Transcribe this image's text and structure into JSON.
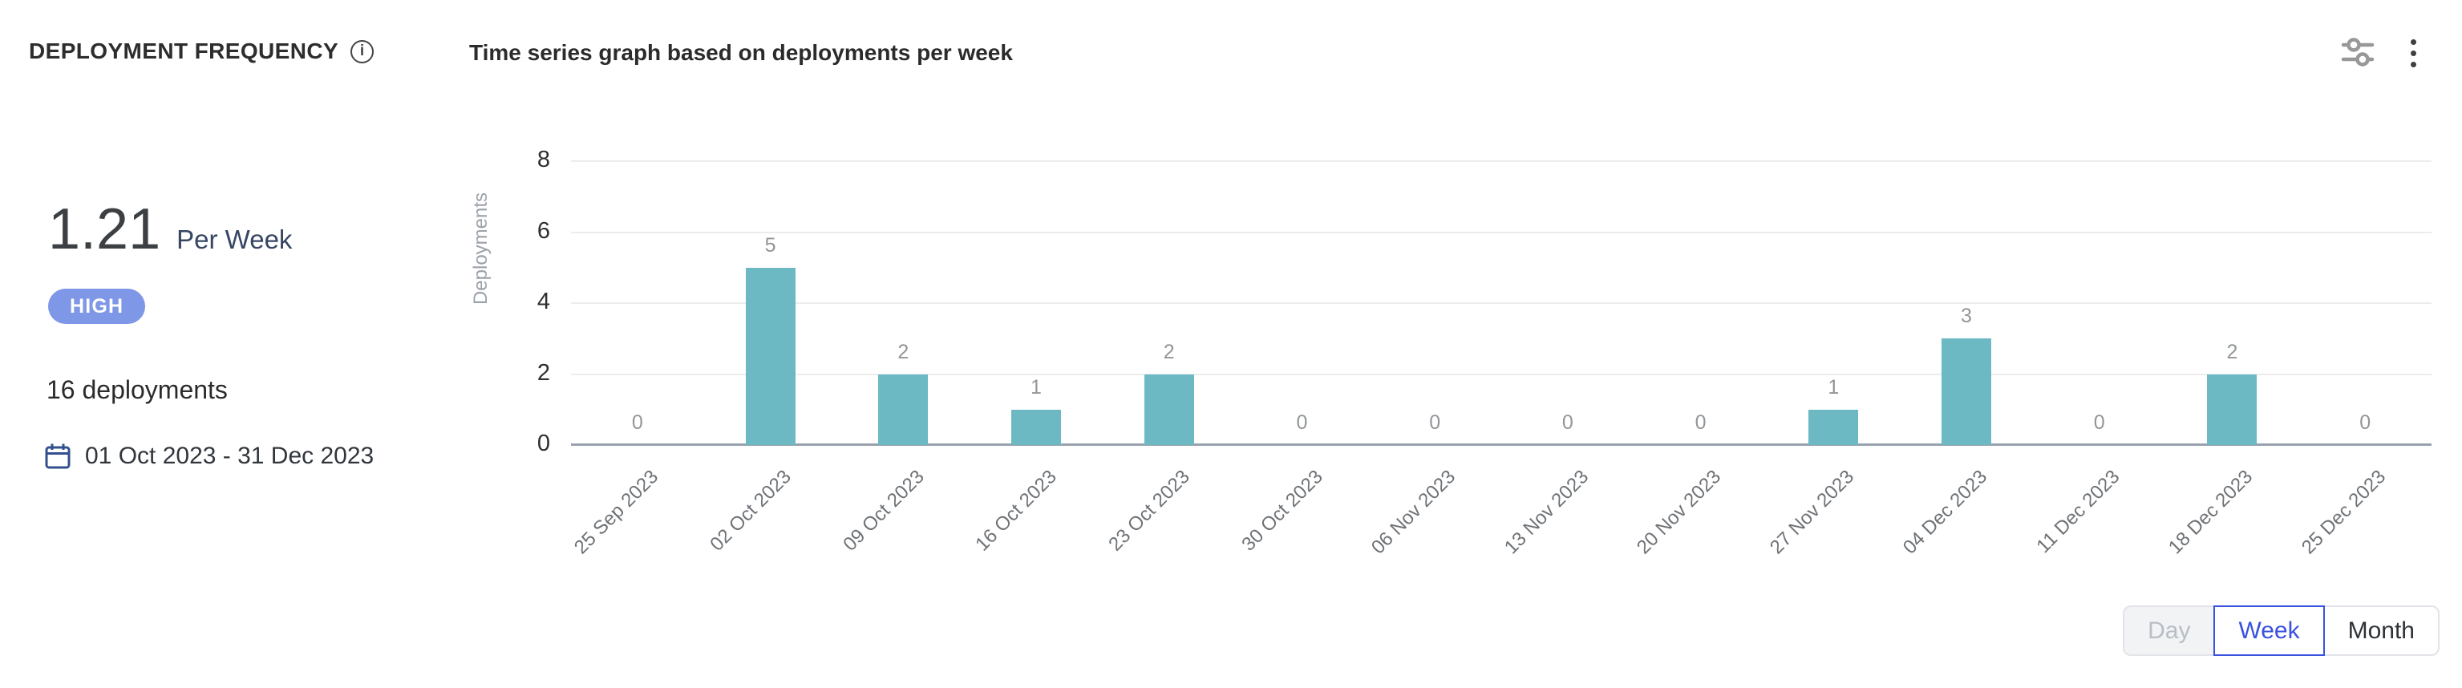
{
  "header": {
    "title": "DEPLOYMENT FREQUENCY",
    "subtitle": "Time series graph based on deployments per week"
  },
  "toolbar": {
    "info_icon": "info-icon",
    "filter_icon": "sliders-filter-icon",
    "menu_icon": "kebab-menu-icon",
    "calendar_icon": "calendar-icon"
  },
  "summary": {
    "metric_value": "1.21",
    "metric_unit": "Per Week",
    "badge_label": "HIGH",
    "deployments_count": "16 deployments",
    "date_range": "01 Oct 2023 - 31 Dec 2023"
  },
  "chart_data": {
    "type": "bar",
    "title": "Time series graph based on deployments per week",
    "xlabel": "",
    "ylabel": "Deployments",
    "categories": [
      "25 Sep 2023",
      "02 Oct 2023",
      "09 Oct 2023",
      "16 Oct 2023",
      "23 Oct 2023",
      "30 Oct 2023",
      "06 Nov 2023",
      "13 Nov 2023",
      "20 Nov 2023",
      "27 Nov 2023",
      "04 Dec 2023",
      "11 Dec 2023",
      "18 Dec 2023",
      "25 Dec 2023"
    ],
    "values": [
      0,
      5,
      2,
      1,
      2,
      0,
      0,
      0,
      0,
      1,
      3,
      0,
      2,
      0
    ],
    "yticks": [
      0,
      2,
      4,
      6,
      8
    ],
    "ylim": [
      0,
      8
    ],
    "bar_color": "#6CB9C3",
    "grid": true,
    "value_labels": true,
    "legend_position": "none"
  },
  "controls": {
    "granularity": [
      {
        "label": "Day",
        "state": "disabled"
      },
      {
        "label": "Week",
        "state": "selected"
      },
      {
        "label": "Month",
        "state": "default"
      }
    ]
  },
  "colors": {
    "bar": "#6CB9C3",
    "badge_bg": "#7E97E6",
    "selected_toggle": "#3A52DD",
    "navy_text": "#364663",
    "baseline": "#99A1AD"
  }
}
